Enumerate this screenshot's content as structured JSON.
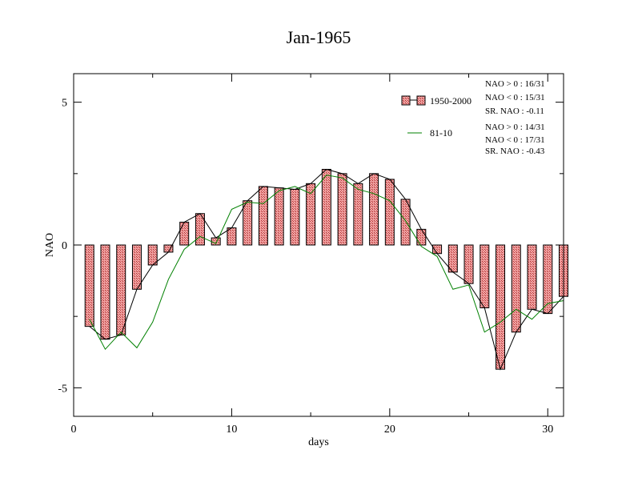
{
  "chart_data": {
    "type": "bar",
    "title": "Jan-1965",
    "xlabel": "days",
    "ylabel": "NAO",
    "xlim": [
      0,
      31
    ],
    "ylim": [
      -6,
      6
    ],
    "x_ticks": [
      0,
      10,
      20,
      30
    ],
    "y_ticks": [
      -5,
      0,
      5
    ],
    "x": [
      1,
      2,
      3,
      4,
      5,
      6,
      7,
      8,
      9,
      10,
      11,
      12,
      13,
      14,
      15,
      16,
      17,
      18,
      19,
      20,
      21,
      22,
      23,
      24,
      25,
      26,
      27,
      28,
      29,
      30,
      31
    ],
    "series": [
      {
        "name": "1950-2000",
        "style": "hatched-bars-with-line",
        "color": "#e46464",
        "line_color": "#000000",
        "values": [
          -2.85,
          -3.3,
          -3.15,
          -1.55,
          -0.7,
          -0.25,
          0.8,
          1.1,
          0.25,
          0.6,
          1.55,
          2.05,
          2.0,
          1.95,
          2.15,
          2.65,
          2.5,
          2.15,
          2.5,
          2.3,
          1.6,
          0.55,
          -0.3,
          -0.95,
          -1.35,
          -2.2,
          -4.35,
          -3.05,
          -2.25,
          -2.4,
          -1.8
        ]
      },
      {
        "name": "81-10",
        "style": "line",
        "color": "#008000",
        "values": [
          -2.6,
          -3.65,
          -3.05,
          -3.6,
          -2.7,
          -1.2,
          -0.15,
          0.3,
          0.05,
          1.25,
          1.5,
          1.45,
          1.9,
          2.05,
          1.8,
          2.45,
          2.35,
          1.95,
          1.8,
          1.55,
          0.85,
          -0.05,
          -0.4,
          -1.55,
          -1.4,
          -3.05,
          -2.7,
          -2.25,
          -2.6,
          -2.05,
          -1.95
        ]
      }
    ],
    "legend_placement": "top-right",
    "stats": [
      [
        "NAO > 0 : 16/31",
        "NAO < 0 : 15/31",
        "SR. NAO : -0.11"
      ],
      [
        "NAO > 0 : 14/31",
        "NAO < 0 : 17/31",
        "SR. NAO : -0.43"
      ]
    ],
    "grid": false
  }
}
